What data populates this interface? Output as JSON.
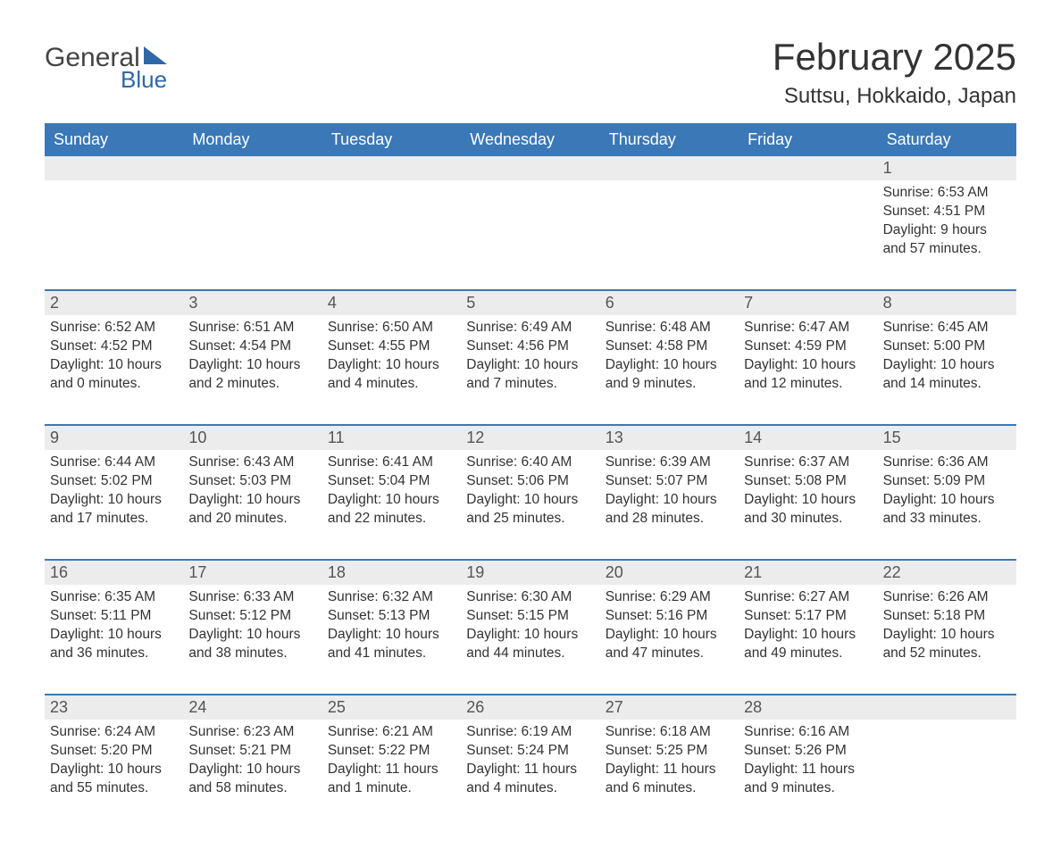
{
  "brand": {
    "line1": "General",
    "line2": "Blue"
  },
  "title": "February 2025",
  "location": "Suttsu, Hokkaido, Japan",
  "colors": {
    "header_bg": "#3a78b7",
    "header_text": "#ffffff",
    "band_bg": "#ececec",
    "rule": "#3a78b7",
    "body_text": "#333333",
    "logo_blue": "#2e68a8"
  },
  "typography": {
    "title_fontsize": 42,
    "location_fontsize": 24,
    "weekday_fontsize": 18,
    "daynum_fontsize": 18,
    "body_fontsize": 15.5
  },
  "layout": {
    "columns": 7,
    "rows": 5
  },
  "weekdays": [
    "Sunday",
    "Monday",
    "Tuesday",
    "Wednesday",
    "Thursday",
    "Friday",
    "Saturday"
  ],
  "weeks": [
    [
      {},
      {},
      {},
      {},
      {},
      {},
      {
        "n": "1",
        "sunrise": "Sunrise: 6:53 AM",
        "sunset": "Sunset: 4:51 PM",
        "dl1": "Daylight: 9 hours",
        "dl2": "and 57 minutes."
      }
    ],
    [
      {
        "n": "2",
        "sunrise": "Sunrise: 6:52 AM",
        "sunset": "Sunset: 4:52 PM",
        "dl1": "Daylight: 10 hours",
        "dl2": "and 0 minutes."
      },
      {
        "n": "3",
        "sunrise": "Sunrise: 6:51 AM",
        "sunset": "Sunset: 4:54 PM",
        "dl1": "Daylight: 10 hours",
        "dl2": "and 2 minutes."
      },
      {
        "n": "4",
        "sunrise": "Sunrise: 6:50 AM",
        "sunset": "Sunset: 4:55 PM",
        "dl1": "Daylight: 10 hours",
        "dl2": "and 4 minutes."
      },
      {
        "n": "5",
        "sunrise": "Sunrise: 6:49 AM",
        "sunset": "Sunset: 4:56 PM",
        "dl1": "Daylight: 10 hours",
        "dl2": "and 7 minutes."
      },
      {
        "n": "6",
        "sunrise": "Sunrise: 6:48 AM",
        "sunset": "Sunset: 4:58 PM",
        "dl1": "Daylight: 10 hours",
        "dl2": "and 9 minutes."
      },
      {
        "n": "7",
        "sunrise": "Sunrise: 6:47 AM",
        "sunset": "Sunset: 4:59 PM",
        "dl1": "Daylight: 10 hours",
        "dl2": "and 12 minutes."
      },
      {
        "n": "8",
        "sunrise": "Sunrise: 6:45 AM",
        "sunset": "Sunset: 5:00 PM",
        "dl1": "Daylight: 10 hours",
        "dl2": "and 14 minutes."
      }
    ],
    [
      {
        "n": "9",
        "sunrise": "Sunrise: 6:44 AM",
        "sunset": "Sunset: 5:02 PM",
        "dl1": "Daylight: 10 hours",
        "dl2": "and 17 minutes."
      },
      {
        "n": "10",
        "sunrise": "Sunrise: 6:43 AM",
        "sunset": "Sunset: 5:03 PM",
        "dl1": "Daylight: 10 hours",
        "dl2": "and 20 minutes."
      },
      {
        "n": "11",
        "sunrise": "Sunrise: 6:41 AM",
        "sunset": "Sunset: 5:04 PM",
        "dl1": "Daylight: 10 hours",
        "dl2": "and 22 minutes."
      },
      {
        "n": "12",
        "sunrise": "Sunrise: 6:40 AM",
        "sunset": "Sunset: 5:06 PM",
        "dl1": "Daylight: 10 hours",
        "dl2": "and 25 minutes."
      },
      {
        "n": "13",
        "sunrise": "Sunrise: 6:39 AM",
        "sunset": "Sunset: 5:07 PM",
        "dl1": "Daylight: 10 hours",
        "dl2": "and 28 minutes."
      },
      {
        "n": "14",
        "sunrise": "Sunrise: 6:37 AM",
        "sunset": "Sunset: 5:08 PM",
        "dl1": "Daylight: 10 hours",
        "dl2": "and 30 minutes."
      },
      {
        "n": "15",
        "sunrise": "Sunrise: 6:36 AM",
        "sunset": "Sunset: 5:09 PM",
        "dl1": "Daylight: 10 hours",
        "dl2": "and 33 minutes."
      }
    ],
    [
      {
        "n": "16",
        "sunrise": "Sunrise: 6:35 AM",
        "sunset": "Sunset: 5:11 PM",
        "dl1": "Daylight: 10 hours",
        "dl2": "and 36 minutes."
      },
      {
        "n": "17",
        "sunrise": "Sunrise: 6:33 AM",
        "sunset": "Sunset: 5:12 PM",
        "dl1": "Daylight: 10 hours",
        "dl2": "and 38 minutes."
      },
      {
        "n": "18",
        "sunrise": "Sunrise: 6:32 AM",
        "sunset": "Sunset: 5:13 PM",
        "dl1": "Daylight: 10 hours",
        "dl2": "and 41 minutes."
      },
      {
        "n": "19",
        "sunrise": "Sunrise: 6:30 AM",
        "sunset": "Sunset: 5:15 PM",
        "dl1": "Daylight: 10 hours",
        "dl2": "and 44 minutes."
      },
      {
        "n": "20",
        "sunrise": "Sunrise: 6:29 AM",
        "sunset": "Sunset: 5:16 PM",
        "dl1": "Daylight: 10 hours",
        "dl2": "and 47 minutes."
      },
      {
        "n": "21",
        "sunrise": "Sunrise: 6:27 AM",
        "sunset": "Sunset: 5:17 PM",
        "dl1": "Daylight: 10 hours",
        "dl2": "and 49 minutes."
      },
      {
        "n": "22",
        "sunrise": "Sunrise: 6:26 AM",
        "sunset": "Sunset: 5:18 PM",
        "dl1": "Daylight: 10 hours",
        "dl2": "and 52 minutes."
      }
    ],
    [
      {
        "n": "23",
        "sunrise": "Sunrise: 6:24 AM",
        "sunset": "Sunset: 5:20 PM",
        "dl1": "Daylight: 10 hours",
        "dl2": "and 55 minutes."
      },
      {
        "n": "24",
        "sunrise": "Sunrise: 6:23 AM",
        "sunset": "Sunset: 5:21 PM",
        "dl1": "Daylight: 10 hours",
        "dl2": "and 58 minutes."
      },
      {
        "n": "25",
        "sunrise": "Sunrise: 6:21 AM",
        "sunset": "Sunset: 5:22 PM",
        "dl1": "Daylight: 11 hours",
        "dl2": "and 1 minute."
      },
      {
        "n": "26",
        "sunrise": "Sunrise: 6:19 AM",
        "sunset": "Sunset: 5:24 PM",
        "dl1": "Daylight: 11 hours",
        "dl2": "and 4 minutes."
      },
      {
        "n": "27",
        "sunrise": "Sunrise: 6:18 AM",
        "sunset": "Sunset: 5:25 PM",
        "dl1": "Daylight: 11 hours",
        "dl2": "and 6 minutes."
      },
      {
        "n": "28",
        "sunrise": "Sunrise: 6:16 AM",
        "sunset": "Sunset: 5:26 PM",
        "dl1": "Daylight: 11 hours",
        "dl2": "and 9 minutes."
      },
      {}
    ]
  ]
}
